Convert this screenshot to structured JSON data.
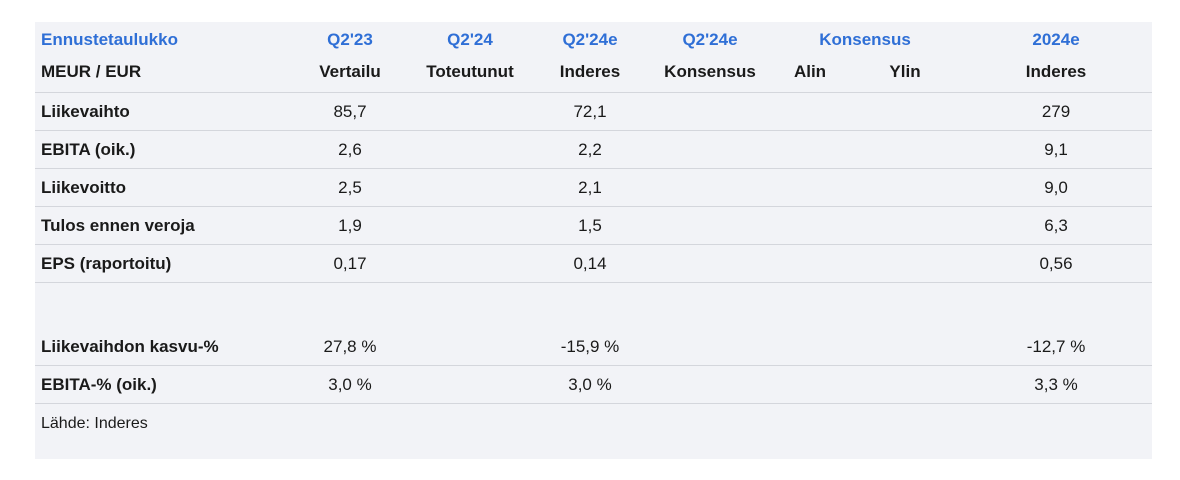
{
  "header": {
    "row1": [
      "Ennustetaulukko",
      "Q2'23",
      "Q2'24",
      "Q2'24e",
      "Q2'24e",
      "Konsensus",
      "2024e"
    ],
    "row2": [
      "MEUR / EUR",
      "Vertailu",
      "Toteutunut",
      "Inderes",
      "Konsensus",
      "Alin",
      "Ylin",
      "Inderes"
    ]
  },
  "rows": [
    {
      "label": "Liikevaihto",
      "q2_23": "85,7",
      "q2_24": "",
      "q2_24e_inderes": "72,1",
      "q2_24e_konsensus": "",
      "alin": "",
      "ylin": "",
      "y2024e": "279"
    },
    {
      "label": "EBITA (oik.)",
      "q2_23": "2,6",
      "q2_24": "",
      "q2_24e_inderes": "2,2",
      "q2_24e_konsensus": "",
      "alin": "",
      "ylin": "",
      "y2024e": "9,1"
    },
    {
      "label": "Liikevoitto",
      "q2_23": "2,5",
      "q2_24": "",
      "q2_24e_inderes": "2,1",
      "q2_24e_konsensus": "",
      "alin": "",
      "ylin": "",
      "y2024e": "9,0"
    },
    {
      "label": "Tulos ennen veroja",
      "q2_23": "1,9",
      "q2_24": "",
      "q2_24e_inderes": "1,5",
      "q2_24e_konsensus": "",
      "alin": "",
      "ylin": "",
      "y2024e": "6,3"
    },
    {
      "label": "EPS (raportoitu)",
      "q2_23": "0,17",
      "q2_24": "",
      "q2_24e_inderes": "0,14",
      "q2_24e_konsensus": "",
      "alin": "",
      "ylin": "",
      "y2024e": "0,56"
    }
  ],
  "growth_rows": [
    {
      "label": "Liikevaihdon kasvu-%",
      "q2_23": "27,8 %",
      "q2_24": "",
      "q2_24e_inderes": "-15,9 %",
      "q2_24e_konsensus": "",
      "alin": "",
      "ylin": "",
      "y2024e": "-12,7 %"
    },
    {
      "label": "EBITA-% (oik.)",
      "q2_23": "3,0 %",
      "q2_24": "",
      "q2_24e_inderes": "3,0 %",
      "q2_24e_konsensus": "",
      "alin": "",
      "ylin": "",
      "y2024e": "3,3 %"
    }
  ],
  "source": "Lähde: Inderes",
  "colors": {
    "header_blue": "#2f6fd6",
    "panel_bg": "#f2f3f7",
    "rule": "#d4d6dc"
  }
}
